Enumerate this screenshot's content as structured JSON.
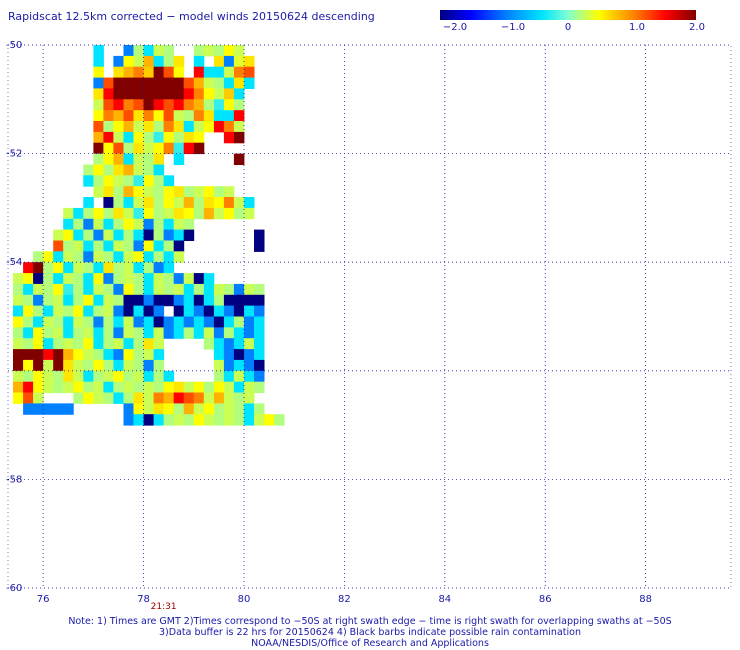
{
  "title": "Rapidscat 12.5km corrected − model winds 20150624 descending",
  "colorbar": {
    "ticks": [
      {
        "value": -2.0,
        "label": "−2.0"
      },
      {
        "value": -1.0,
        "label": "−1.0"
      },
      {
        "value": 0,
        "label": "0"
      },
      {
        "value": 1.0,
        "label": "1.0"
      },
      {
        "value": 2.0,
        "label": "2.0"
      }
    ],
    "range": [
      -2.0,
      2.0
    ],
    "colors": [
      "#000080",
      "#0000ff",
      "#0080ff",
      "#00e5ff",
      "#80ffd0",
      "#ffff00",
      "#ff8000",
      "#ff0000",
      "#800000"
    ]
  },
  "chart_data": {
    "type": "heatmap",
    "title": "Rapidscat 12.5km corrected − model winds 20150624 descending",
    "x_ticks": [
      76,
      78,
      80,
      82,
      84,
      86,
      88
    ],
    "y_ticks": [
      -50,
      -52,
      -54,
      -56,
      -58,
      -60
    ],
    "y_tick_labels": [
      "-50",
      "-52",
      "-54",
      "",
      "-58",
      "-60"
    ],
    "xlim": [
      75.3,
      89.7
    ],
    "ylim": [
      -60,
      -50
    ],
    "grid": true,
    "cell_lon_step": 0.2,
    "cell_lat_step": 0.2,
    "value_range": [
      -2.0,
      2.0
    ],
    "swath_time_label": "21:31",
    "swath_time_lon": 78.4,
    "rows": [
      {
        "lat": -50.0,
        "lon0": 77.0,
        "values": [
          -0.5,
          null,
          null,
          -1.0,
          0.2,
          -0.5,
          0.3,
          0.2,
          null,
          null,
          0.2,
          0.3,
          0.2,
          0.5,
          0.3
        ]
      },
      {
        "lat": -50.2,
        "lon0": 77.0,
        "values": [
          -0.5,
          null,
          -1.0,
          0.5,
          0.3,
          0.8,
          -0.5,
          0.2,
          0.6,
          null,
          -0.5,
          null,
          0.6,
          -1.0,
          0.4,
          0.6
        ]
      },
      {
        "lat": -50.4,
        "lon0": 77.0,
        "values": [
          0.5,
          null,
          0.6,
          0.8,
          1.0,
          0.7,
          2.0,
          1.2,
          0.5,
          null,
          1.5,
          -0.5,
          -0.5,
          0.3,
          1.0,
          1.2
        ]
      },
      {
        "lat": -50.6,
        "lon0": 77.0,
        "values": [
          -1.0,
          1.2,
          2.0,
          2.0,
          2.0,
          2.0,
          2.0,
          2.0,
          2.0,
          1.2,
          0.8,
          0.3,
          0.2,
          -0.5,
          0.6,
          -0.5
        ]
      },
      {
        "lat": -50.8,
        "lon0": 77.0,
        "values": [
          0.6,
          1.5,
          2.0,
          2.0,
          2.0,
          2.0,
          2.0,
          2.0,
          2.0,
          1.5,
          1.0,
          0.5,
          0.3,
          0.7,
          -0.5
        ]
      },
      {
        "lat": -51.0,
        "lon0": 77.0,
        "values": [
          0.3,
          1.2,
          1.5,
          1.0,
          1.2,
          2.0,
          1.5,
          1.2,
          1.5,
          1.0,
          0.8,
          0.2,
          -0.3,
          0.5,
          0.2
        ]
      },
      {
        "lat": -51.2,
        "lon0": 77.0,
        "values": [
          0.5,
          1.0,
          0.8,
          1.2,
          0.6,
          1.0,
          0.5,
          1.2,
          0.3,
          0.2,
          1.0,
          0.6,
          -0.5,
          -0.5,
          1.5
        ]
      },
      {
        "lat": -51.4,
        "lon0": 77.0,
        "values": [
          1.2,
          0.2,
          0.5,
          0.8,
          0.3,
          0.6,
          0.2,
          1.0,
          0.6,
          -0.5,
          0.3,
          0.5,
          1.5,
          1.0,
          0.3
        ]
      },
      {
        "lat": -51.6,
        "lon0": 77.0,
        "values": [
          0.8,
          1.5,
          0.3,
          -0.5,
          0.5,
          0.2,
          -0.3,
          0.5,
          0.2,
          0.6,
          0.5,
          null,
          null,
          1.5,
          2.0
        ]
      },
      {
        "lat": -51.8,
        "lon0": 77.0,
        "values": [
          2.0,
          0.5,
          1.2,
          0.2,
          0.6,
          0.3,
          0.5,
          1.0,
          -0.3,
          1.5,
          2.0,
          null,
          null,
          null,
          null
        ]
      },
      {
        "lat": -52.0,
        "lon0": 77.0,
        "values": [
          0.2,
          0.5,
          0.8,
          -0.5,
          0.3,
          0.2,
          0.6,
          null,
          -0.5,
          null,
          null,
          null,
          null,
          null,
          2.0
        ]
      },
      {
        "lat": -52.2,
        "lon0": 76.8,
        "values": [
          0.2,
          0.5,
          0.2,
          0.6,
          0.8,
          0.3,
          0.2,
          -0.5,
          null,
          null,
          null,
          null,
          null,
          null,
          null
        ]
      },
      {
        "lat": -52.4,
        "lon0": 76.8,
        "values": [
          -0.5,
          0.2,
          0.5,
          0.3,
          0.2,
          -0.3,
          0.5,
          0.2,
          -0.5,
          null,
          null,
          null,
          null,
          null,
          null
        ]
      },
      {
        "lat": -52.6,
        "lon0": 76.8,
        "values": [
          null,
          0.3,
          0.6,
          0.2,
          0.8,
          0.5,
          0.3,
          0.2,
          0.5,
          0.6,
          0.2,
          0.3,
          0.5,
          0.2,
          0.3
        ]
      },
      {
        "lat": -52.8,
        "lon0": 76.8,
        "values": [
          -0.5,
          null,
          -2.0,
          0.2,
          -0.5,
          0.3,
          0.6,
          0.2,
          0.5,
          0.3,
          0.8,
          0.2,
          0.6,
          0.5,
          1.0,
          0.3,
          -0.5
        ]
      },
      {
        "lat": -53.0,
        "lon0": 76.4,
        "values": [
          0.3,
          -0.5,
          0.2,
          0.5,
          0.2,
          0.6,
          0.3,
          -0.3,
          0.5,
          0.2,
          0.3,
          0.6,
          0.5,
          0.2,
          0.8,
          0.3,
          0.5,
          0.2,
          0.3
        ]
      },
      {
        "lat": -53.2,
        "lon0": 76.4,
        "values": [
          -0.5,
          0.2,
          -1.0,
          0.3,
          -0.5,
          0.2,
          0.5,
          0.3,
          -1.0,
          0.2,
          -0.5,
          0.3,
          0.2,
          null,
          null,
          null,
          null,
          null,
          null
        ]
      },
      {
        "lat": -53.4,
        "lon0": 76.2,
        "values": [
          0.3,
          0.5,
          -0.5,
          0.2,
          -1.0,
          0.3,
          -0.5,
          0.2,
          -0.5,
          -2.0,
          0.2,
          -1.0,
          -0.5,
          -2.0,
          null,
          null,
          null,
          null,
          null,
          null,
          -2.0
        ]
      },
      {
        "lat": -53.6,
        "lon0": 76.2,
        "values": [
          1.2,
          0.2,
          0.3,
          -0.5,
          0.2,
          -0.5,
          0.3,
          0.2,
          -1.0,
          0.5,
          -0.5,
          0.2,
          -2.0,
          null,
          null,
          null,
          null,
          null,
          null,
          null,
          -2.0
        ]
      },
      {
        "lat": -53.8,
        "lon0": 75.8,
        "values": [
          0.2,
          0.5,
          -0.5,
          0.3,
          0.2,
          -1.0,
          0.3,
          0.2,
          -0.5,
          0.3,
          0.5,
          -0.5,
          0.2,
          -0.5,
          0.3
        ]
      },
      {
        "lat": -54.0,
        "lon0": 75.6,
        "values": [
          1.5,
          2.0,
          0.2,
          0.5,
          -0.5,
          0.3,
          0.2,
          -0.5,
          0.6,
          0.2,
          0.3,
          -0.5,
          0.2,
          -1.0,
          -0.5
        ]
      },
      {
        "lat": -54.2,
        "lon0": 75.4,
        "values": [
          0.3,
          0.5,
          -2.0,
          0.2,
          -0.5,
          0.3,
          0.2,
          -0.5,
          0.5,
          -1.0,
          0.2,
          0.3,
          0.2,
          -0.5,
          0.3,
          0.2,
          -1.0,
          0.3,
          -2.0,
          -0.5
        ]
      },
      {
        "lat": -54.4,
        "lon0": 75.4,
        "values": [
          0.2,
          -0.5,
          0.3,
          0.2,
          0.5,
          -0.3,
          0.2,
          -0.5,
          0.3,
          0.2,
          -1.0,
          0.5,
          0.2,
          -0.5,
          0.3,
          0.2,
          0.3,
          -0.5,
          0.2,
          -0.5,
          0.3,
          0.2,
          -1.0,
          0.3,
          0.2
        ]
      },
      {
        "lat": -54.6,
        "lon0": 75.4,
        "values": [
          0.3,
          0.2,
          -1.0,
          0.2,
          0.3,
          -0.5,
          0.2,
          0.5,
          -0.5,
          0.3,
          0.2,
          -2.0,
          -2.0,
          -1.0,
          -2.0,
          -2.0,
          -1.0,
          -0.5,
          -2.0,
          -0.5,
          0.2,
          -2.0,
          -2.0,
          -2.0,
          -2.0
        ]
      },
      {
        "lat": -54.8,
        "lon0": 75.4,
        "values": [
          -0.5,
          0.5,
          0.2,
          -0.5,
          0.3,
          0.2,
          0.5,
          -0.5,
          0.2,
          0.3,
          -1.0,
          -2.0,
          -0.5,
          -2.0,
          -1.0,
          null,
          -2.0,
          -0.5,
          -1.0,
          -2.0,
          -0.5,
          -1.0,
          -2.0,
          -0.5,
          -1.0
        ]
      },
      {
        "lat": -55.0,
        "lon0": 75.4,
        "values": [
          0.5,
          0.2,
          -0.5,
          0.3,
          0.2,
          -0.5,
          0.3,
          0.2,
          -1.0,
          0.2,
          -0.5,
          0.3,
          -1.0,
          -0.5,
          -2.0,
          -1.0,
          -0.5,
          -1.0,
          -0.5,
          -1.0,
          -2.0,
          -0.5,
          0.2,
          -1.0,
          -0.5
        ]
      },
      {
        "lat": -55.2,
        "lon0": 75.4,
        "values": [
          0.2,
          -0.5,
          0.5,
          0.2,
          0.3,
          -0.5,
          0.2,
          0.3,
          -0.5,
          0.2,
          -1.0,
          0.3,
          0.2,
          -0.5,
          0.3,
          -1.0,
          -0.5,
          0.2,
          -0.5,
          0.3,
          -1.0,
          0.2,
          -0.5,
          -1.0,
          -0.5
        ]
      },
      {
        "lat": -55.4,
        "lon0": 75.4,
        "values": [
          0.3,
          0.2,
          0.5,
          -0.5,
          0.2,
          0.3,
          0.2,
          0.5,
          -0.5,
          0.2,
          0.3,
          -0.5,
          0.2,
          0.6,
          0.3,
          null,
          null,
          null,
          null,
          0.2,
          -0.5,
          -1.0,
          -0.5,
          0.3,
          -0.5
        ]
      },
      {
        "lat": -55.6,
        "lon0": 75.4,
        "values": [
          2.0,
          2.0,
          2.0,
          1.5,
          2.0,
          0.8,
          0.5,
          0.3,
          0.2,
          -0.5,
          -1.0,
          0.5,
          0.2,
          0.3,
          -0.5,
          null,
          null,
          null,
          null,
          null,
          -0.5,
          -1.0,
          -2.0,
          -1.0,
          -0.5
        ]
      },
      {
        "lat": -55.8,
        "lon0": 75.4,
        "values": [
          2.0,
          0.5,
          2.0,
          0.3,
          2.0,
          0.6,
          0.3,
          0.2,
          0.5,
          0.2,
          -0.5,
          0.3,
          0.2,
          -1.0,
          0.2,
          null,
          null,
          null,
          null,
          null,
          0.3,
          -1.0,
          -0.5,
          -1.0,
          -2.0
        ]
      },
      {
        "lat": -56.0,
        "lon0": 75.4,
        "values": [
          0.3,
          0.2,
          0.5,
          0.3,
          0.2,
          0.6,
          0.3,
          -0.5,
          0.2,
          0.3,
          0.5,
          0.2,
          0.3,
          -0.5,
          0.2,
          -0.5,
          null,
          null,
          null,
          null,
          0.2,
          -0.5,
          0.3,
          -0.5,
          -1.0
        ]
      },
      {
        "lat": -56.2,
        "lon0": 75.4,
        "values": [
          0.8,
          1.5,
          0.5,
          0.3,
          0.2,
          0.3,
          0.5,
          0.2,
          0.3,
          -0.5,
          0.2,
          0.3,
          0.2,
          0.3,
          0.2,
          0.5,
          0.6,
          0.3,
          0.5,
          0.2,
          0.5,
          0.3,
          -0.5,
          0.3,
          0.2
        ]
      },
      {
        "lat": -56.4,
        "lon0": 75.4,
        "values": [
          0.5,
          1.2,
          0.3,
          null,
          null,
          null,
          0.2,
          0.5,
          0.3,
          0.2,
          -0.5,
          0.2,
          0.6,
          0.3,
          1.0,
          0.8,
          1.5,
          1.2,
          1.0,
          0.3,
          0.8,
          0.3,
          0.2,
          0.3
        ]
      },
      {
        "lat": -56.6,
        "lon0": 75.6,
        "values": [
          -1.0,
          -1.0,
          -1.0,
          -1.0,
          -1.0,
          null,
          null,
          null,
          null,
          null,
          -1.0,
          0.5,
          0.3,
          0.6,
          0.5,
          0.2,
          0.8,
          0.3,
          0.5,
          0.2,
          0.3,
          0.2,
          -0.5,
          0.2
        ]
      },
      {
        "lat": -56.8,
        "lon0": 77.6,
        "values": [
          -1.0,
          -0.5,
          -2.0,
          -0.5,
          0.2,
          0.3,
          0.2,
          0.5,
          0.3,
          0.2,
          0.3,
          0.2,
          -0.5,
          0.3,
          0.5,
          0.2
        ]
      }
    ]
  },
  "footnote": {
    "line1": "Note: 1) Times are GMT 2)Times correspond to −50S at right swath edge − time is right swath for overlapping swaths at −50S",
    "line2": "3)Data buffer is 22 hrs for 20150624 4) Black barbs indicate possible rain contamination",
    "line3": "NOAA/NESDIS/Office of Research and Applications"
  }
}
